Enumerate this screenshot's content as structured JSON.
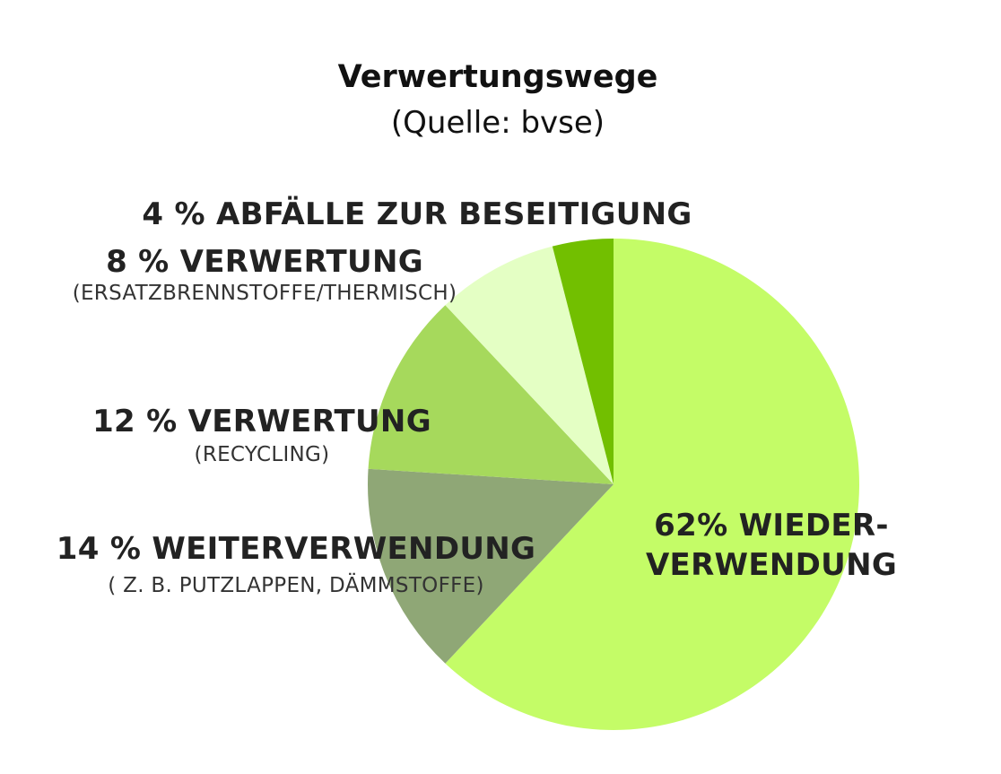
{
  "chart_data": {
    "type": "pie",
    "title": "Verwertungswege",
    "subtitle": "(Quelle: bvse)",
    "slices": [
      {
        "label_line1": "62% WIEDER-",
        "label_line2": "VERWENDUNG",
        "value": 62,
        "color": "#c4fc67"
      },
      {
        "label_line1": "14 % WEITERVERWENDUNG",
        "label_line2": "( Z. B. PUTZLAPPEN, DÄMMSTOFFE)",
        "value": 14,
        "color": "#8fa776"
      },
      {
        "label_line1": "12 % VERWERTUNG",
        "label_line2": "(RECYCLING)",
        "value": 12,
        "color": "#a6d95c"
      },
      {
        "label_line1": "8 % VERWERTUNG",
        "label_line2": "(ERSATZBRENNSTOFFE/THERMISCH)",
        "value": 8,
        "color": "#e4ffc4"
      },
      {
        "label_line1": "4 % ABFÄLLE ZUR BESEITIGUNG",
        "label_line2": "",
        "value": 4,
        "color": "#72bf00"
      }
    ]
  }
}
